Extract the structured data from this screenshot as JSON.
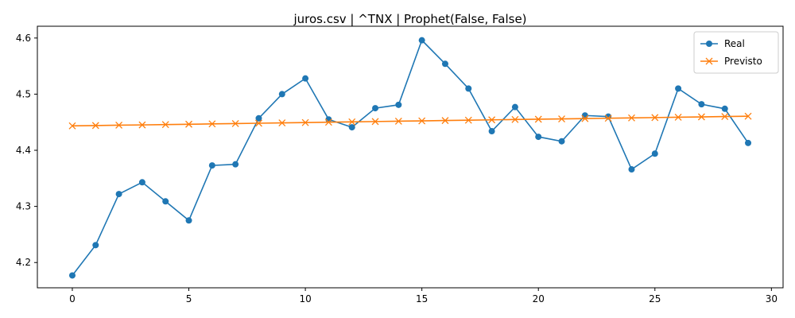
{
  "chart_data": {
    "type": "line",
    "title": "juros.csv | ^TNX | Prophet(False, False)",
    "xlabel": "",
    "ylabel": "",
    "xlim": [
      -1.5,
      30.5
    ],
    "ylim": [
      4.155,
      4.621
    ],
    "xticks": [
      0,
      5,
      10,
      15,
      20,
      25,
      30
    ],
    "yticks": [
      4.2,
      4.3,
      4.4,
      4.5,
      4.6
    ],
    "xtick_labels": [
      "0",
      "5",
      "10",
      "15",
      "20",
      "25",
      "30"
    ],
    "ytick_labels": [
      "4.2",
      "4.3",
      "4.4",
      "4.5",
      "4.6"
    ],
    "grid": false,
    "legend_position": "top-right",
    "x": [
      0,
      1,
      2,
      3,
      4,
      5,
      6,
      7,
      8,
      9,
      10,
      11,
      12,
      13,
      14,
      15,
      16,
      17,
      18,
      19,
      20,
      21,
      22,
      23,
      24,
      25,
      26,
      27,
      28,
      29
    ],
    "series": [
      {
        "name": "Real",
        "color": "#1f77b4",
        "marker": "circle",
        "values": [
          4.177,
          4.231,
          4.322,
          4.343,
          4.309,
          4.275,
          4.373,
          4.375,
          4.457,
          4.5,
          4.528,
          4.455,
          4.441,
          4.475,
          4.481,
          4.596,
          4.554,
          4.51,
          4.434,
          4.477,
          4.424,
          4.416,
          4.462,
          4.46,
          4.366,
          4.394,
          4.51,
          4.482,
          4.474,
          4.413
        ]
      },
      {
        "name": "Previsto",
        "color": "#ff7f0e",
        "marker": "x",
        "values": [
          4.4435,
          4.4441,
          4.4447,
          4.4452,
          4.4458,
          4.4464,
          4.447,
          4.4476,
          4.4482,
          4.4488,
          4.4494,
          4.45,
          4.4506,
          4.4512,
          4.4518,
          4.4524,
          4.453,
          4.4536,
          4.4542,
          4.4548,
          4.4553,
          4.4559,
          4.4565,
          4.4571,
          4.4577,
          4.4583,
          4.4589,
          4.4595,
          4.4601,
          4.4607
        ]
      }
    ]
  }
}
